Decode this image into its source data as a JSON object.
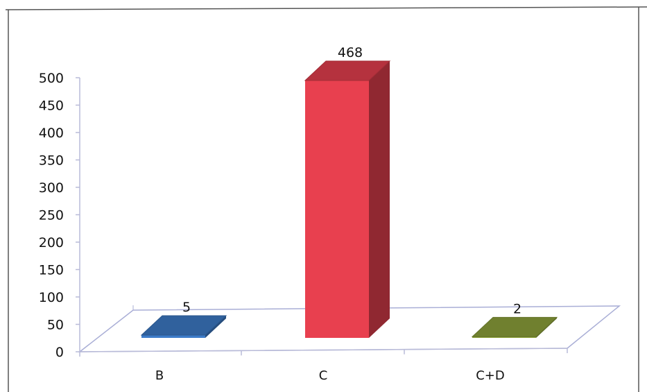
{
  "chart_data": {
    "type": "bar",
    "style": "3d-column",
    "categories": [
      "B",
      "C",
      "C+D"
    ],
    "values": [
      5,
      468,
      2
    ],
    "data_labels": [
      "5",
      "468",
      "2"
    ],
    "bar_colors": [
      "#3d7cc9",
      "#e8404f",
      "#8fa43c"
    ],
    "ylim": [
      0,
      500
    ],
    "yticks": [
      0,
      50,
      100,
      150,
      200,
      250,
      300,
      350,
      400,
      450,
      500
    ],
    "grid": false,
    "legend": "none"
  }
}
